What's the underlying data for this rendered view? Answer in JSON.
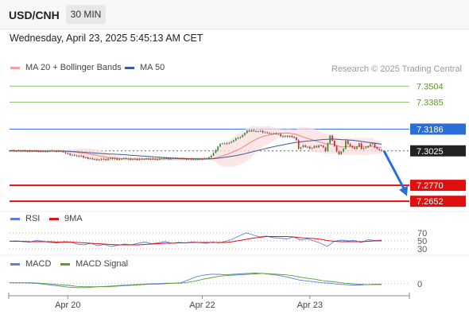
{
  "header": {
    "symbol": "USD/CNH",
    "timeframe": "30 MIN"
  },
  "datetime": "Wednesday, April 23, 2025 5:45:13 AM CET",
  "legend": {
    "items": [
      {
        "label": "MA 20 + Bollinger Bands",
        "color": "#f4a0a0"
      },
      {
        "label": "MA 50",
        "color": "#3a5a9a"
      }
    ],
    "credit": "Research © 2025 Trading Central"
  },
  "chart_data": [
    {
      "type": "candlestick",
      "title": "USD/CNH 30 MIN",
      "ylim": [
        7.26,
        7.36
      ],
      "levels": [
        {
          "label": "7.3504",
          "value": 7.3504,
          "kind": "resistance-target",
          "color": "#8fc27a"
        },
        {
          "label": "7.3385",
          "value": 7.3385,
          "kind": "resistance-target",
          "color": "#8fc27a"
        },
        {
          "label": "7.3186",
          "value": 7.3186,
          "kind": "pivot",
          "color": "#2b6fd6"
        },
        {
          "label": "7.3025",
          "value": 7.3025,
          "kind": "last-price",
          "color": "#222222"
        },
        {
          "label": "7.2770",
          "value": 7.277,
          "kind": "support-target",
          "color": "#e01010"
        },
        {
          "label": "7.2652",
          "value": 7.2652,
          "kind": "support-target",
          "color": "#e01010"
        }
      ],
      "x_ticks": [
        {
          "label": "Apr 20",
          "index": 26
        },
        {
          "label": "Apr 22",
          "index": 86
        },
        {
          "label": "Apr 23",
          "index": 134
        }
      ],
      "close_series": [
        7.3026,
        7.3027,
        7.3025,
        7.3024,
        7.3027,
        7.3023,
        7.3026,
        7.3024,
        7.3021,
        7.3025,
        7.3023,
        7.3024,
        7.3023,
        7.3022,
        7.3021,
        7.3022,
        7.3021,
        7.3022,
        7.3025,
        7.3026,
        7.3024,
        7.3023,
        7.3024,
        7.3022,
        7.3015,
        7.3008,
        7.3003,
        7.2994,
        7.2995,
        7.2991,
        7.2987,
        7.2983,
        7.2987,
        7.2975,
        7.2977,
        7.2966,
        7.2969,
        7.2964,
        7.2964,
        7.2957,
        7.296,
        7.2966,
        7.2964,
        7.2957,
        7.2967,
        7.2972,
        7.2965,
        7.2969,
        7.296,
        7.2966,
        7.2966,
        7.297,
        7.2966,
        7.2967,
        7.296,
        7.2966,
        7.2963,
        7.296,
        7.2966,
        7.2965,
        7.2965,
        7.2967,
        7.2965,
        7.2964,
        7.2966,
        7.2963,
        7.2962,
        7.2966,
        7.2968,
        7.2973,
        7.297,
        7.2963,
        7.2969,
        7.2972,
        7.2972,
        7.2968,
        7.2966,
        7.297,
        7.2965,
        7.2962,
        7.2966,
        7.2963,
        7.2962,
        7.2962,
        7.2963,
        7.2965,
        7.2964,
        7.2968,
        7.2969,
        7.2977,
        7.299,
        7.301,
        7.303,
        7.3057,
        7.3076,
        7.308,
        7.3078,
        7.308,
        7.3085,
        7.3092,
        7.3103,
        7.3117,
        7.312,
        7.3127,
        7.3141,
        7.3157,
        7.3175,
        7.3168,
        7.3178,
        7.3172,
        7.3168,
        7.3169,
        7.3173,
        7.3161,
        7.3162,
        7.3157,
        7.3151,
        7.3152,
        7.3155,
        7.3149,
        7.3149,
        7.3134,
        7.3128,
        7.3135,
        7.3128,
        7.3136,
        7.3127,
        7.3123,
        7.3104,
        7.304,
        7.3051,
        7.3065,
        7.3054,
        7.3055,
        7.3043,
        7.3046,
        7.3061,
        7.3052,
        7.3065,
        7.3064,
        7.305,
        7.3024,
        7.308,
        7.3138,
        7.31,
        7.306,
        7.302,
        7.3,
        7.302,
        7.304,
        7.31,
        7.3075,
        7.306,
        7.305,
        7.304,
        7.3055,
        7.308,
        7.304,
        7.3045,
        7.305,
        7.306,
        7.3075,
        7.308,
        7.305,
        7.304,
        7.3032,
        7.3025
      ],
      "forecast_arrow": {
        "from": 7.3025,
        "to": 7.269,
        "direction": "down"
      }
    },
    {
      "type": "line",
      "title": "RSI",
      "legend": [
        {
          "label": "RSI",
          "color": "#5a7fe0"
        },
        {
          "label": "9MA",
          "color": "#e01010"
        }
      ],
      "ylim": [
        20,
        80
      ],
      "levels": [
        {
          "label": "70",
          "value": 70
        },
        {
          "label": "50",
          "value": 50
        },
        {
          "label": "30",
          "value": 30
        }
      ],
      "series": [
        {
          "name": "RSI",
          "values": [
            49,
            50,
            48,
            47,
            51,
            49,
            46,
            45,
            48,
            47,
            42,
            40,
            44,
            38,
            41,
            36,
            39,
            42,
            40,
            44,
            47,
            43,
            45,
            48,
            44,
            46,
            45,
            47,
            46,
            44,
            47,
            45,
            49,
            55,
            63,
            70,
            65,
            60,
            62,
            58,
            57,
            55,
            60,
            52,
            55,
            50,
            44,
            36,
            49,
            52,
            50,
            51,
            46,
            53,
            51,
            52
          ]
        },
        {
          "name": "9MA",
          "values": [
            49,
            49,
            49,
            48,
            48,
            48,
            48,
            47,
            47,
            47,
            46,
            45,
            44,
            43,
            42,
            41,
            40,
            40,
            40,
            40,
            41,
            42,
            43,
            44,
            44,
            45,
            45,
            46,
            46,
            46,
            46,
            46,
            46,
            48,
            51,
            54,
            57,
            59,
            61,
            61,
            61,
            61,
            60,
            58,
            57,
            56,
            54,
            51,
            49,
            48,
            48,
            48,
            48,
            49,
            50,
            50
          ]
        }
      ]
    },
    {
      "type": "line",
      "title": "MACD",
      "legend": [
        {
          "label": "MACD",
          "color": "#5a7fe0"
        },
        {
          "label": "MACD Signal",
          "color": "#5aa02c"
        }
      ],
      "ylim": [
        -0.002,
        0.003
      ],
      "levels": [
        {
          "label": "0",
          "value": 0
        }
      ],
      "series": [
        {
          "name": "MACD",
          "values": [
            0.0002,
            0.0002,
            0.0002,
            0.0001,
            0.0,
            -0.0002,
            -0.0004,
            -0.0006,
            -0.0008,
            -0.0009,
            -0.0009,
            -0.0008,
            -0.0007,
            -0.0006,
            -0.0005,
            -0.0004,
            -0.0003,
            -0.0002,
            -0.0001,
            0.0,
            0.0,
            0.0001,
            0.0001,
            0.0002,
            0.0008,
            0.0015,
            0.0019,
            0.0021,
            0.0021,
            0.002,
            0.0021,
            0.0022,
            0.0023,
            0.0024,
            0.0023,
            0.0021,
            0.0019,
            0.0016,
            0.0012,
            0.0008,
            0.0006,
            0.0004,
            0.0002,
            0.0001,
            -0.0001,
            -0.0002,
            -0.0003,
            -0.0003,
            -0.0002,
            -0.0001,
            -0.0001
          ]
        },
        {
          "name": "MACD Signal",
          "values": [
            0.0002,
            0.0002,
            0.0002,
            0.0002,
            0.0001,
            0.0,
            -0.0001,
            -0.0003,
            -0.0004,
            -0.0006,
            -0.0007,
            -0.0007,
            -0.0007,
            -0.0007,
            -0.0006,
            -0.0005,
            -0.0004,
            -0.0003,
            -0.0002,
            -0.0001,
            -0.0001,
            0.0,
            0.0001,
            0.0001,
            0.0003,
            0.0006,
            0.001,
            0.0013,
            0.0016,
            0.0018,
            0.0019,
            0.002,
            0.0021,
            0.0022,
            0.0023,
            0.0022,
            0.0021,
            0.002,
            0.0018,
            0.0015,
            0.0012,
            0.001,
            0.0007,
            0.0005,
            0.0003,
            0.0001,
            0.0,
            -0.0001,
            -0.0002,
            -0.0002,
            -0.0002
          ]
        }
      ]
    }
  ]
}
